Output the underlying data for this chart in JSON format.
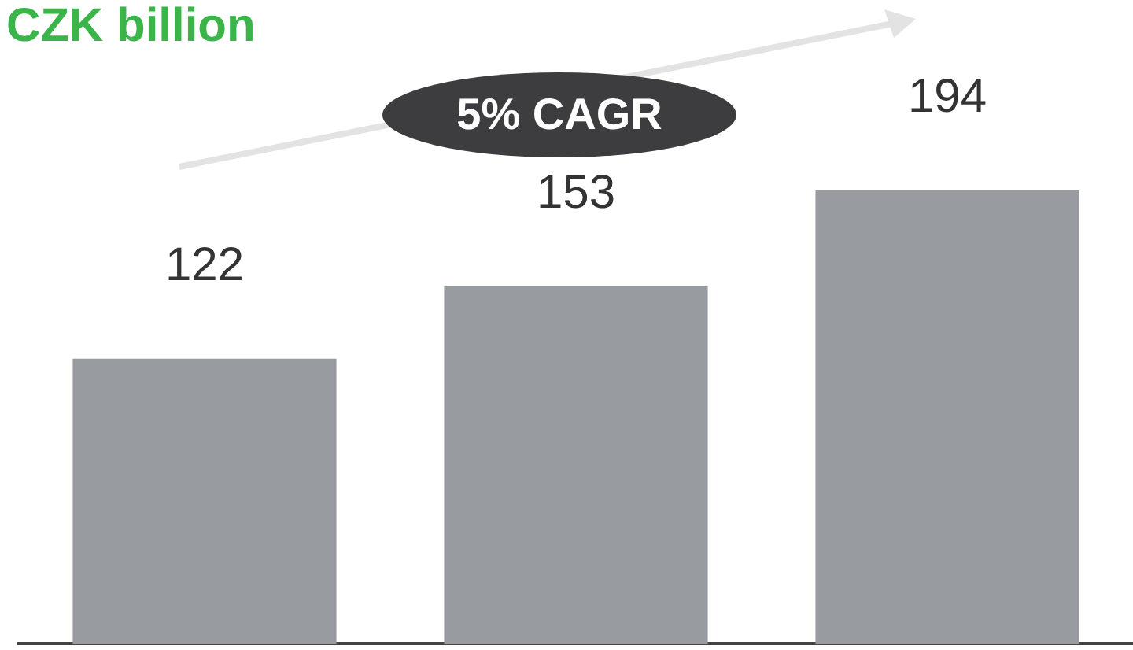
{
  "chart_data": {
    "type": "bar",
    "title": "CZK billion",
    "categories": [
      null,
      null,
      null
    ],
    "values": [
      122,
      153,
      194
    ],
    "color": "#989ba0",
    "data_labels": true,
    "legend": false,
    "grid": false,
    "annotations": [
      "5% CAGR"
    ]
  }
}
